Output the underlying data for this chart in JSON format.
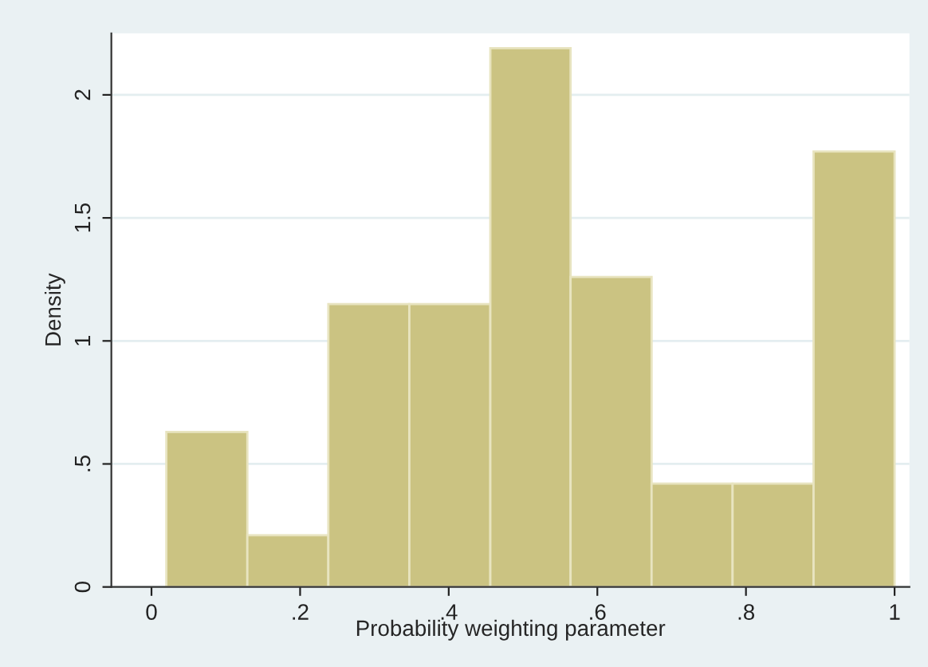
{
  "chart_data": {
    "type": "histogram",
    "xlabel": "Probability weighting parameter",
    "ylabel": "Density",
    "bins": [
      0.02,
      0.129,
      0.238,
      0.347,
      0.456,
      0.564,
      0.673,
      0.782,
      0.891,
      1.0
    ],
    "values": [
      0.63,
      0.21,
      1.15,
      1.15,
      2.19,
      1.26,
      0.42,
      0.42,
      1.77
    ],
    "color": "#cbc382",
    "xlim": [
      -0.054,
      1.02
    ],
    "ylim": [
      0,
      2.25
    ],
    "xticks": [
      0,
      {
        "value": 0.2,
        "label": ".2"
      },
      {
        "value": 0.4,
        "label": ".4"
      },
      {
        "value": 0.6,
        "label": ".6"
      },
      {
        "value": 0.8,
        "label": ".8"
      },
      1
    ],
    "yticks": [
      0,
      {
        "value": 0.5,
        "label": ".5"
      },
      1,
      1.5,
      2
    ],
    "grid": "y"
  }
}
